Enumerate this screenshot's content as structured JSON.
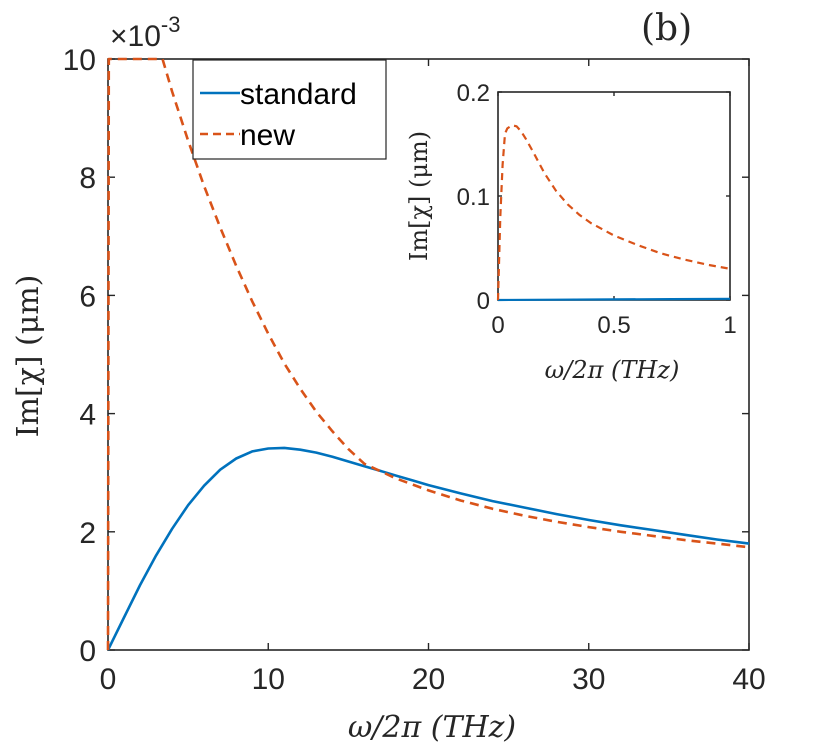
{
  "panel_label": "(b)",
  "colors": {
    "standard": "#0072BD",
    "new": "#D95319",
    "axis": "#262626"
  },
  "chart_data": [
    {
      "id": "main",
      "type": "line",
      "xlabel": "ω/2π (THz)",
      "ylabel": "Im[χ] (μm)",
      "xlim": [
        0,
        40
      ],
      "ylim": [
        0,
        10
      ],
      "y_multiplier": "×10",
      "y_multiplier_exp": "-3",
      "xticks": [
        0,
        10,
        20,
        30,
        40
      ],
      "yticks": [
        0,
        2,
        4,
        6,
        8,
        10
      ],
      "legend": {
        "position": "top-left",
        "entries": [
          "standard",
          "new"
        ]
      },
      "series": [
        {
          "name": "standard",
          "style": "solid",
          "x": [
            0,
            1,
            2,
            3,
            4,
            5,
            6,
            7,
            8,
            9,
            10,
            11,
            12,
            13,
            14,
            15,
            16,
            17,
            18,
            19,
            20,
            22,
            24,
            26,
            28,
            30,
            32,
            34,
            36,
            38,
            40
          ],
          "y": [
            0,
            0.55,
            1.1,
            1.6,
            2.05,
            2.45,
            2.78,
            3.05,
            3.24,
            3.36,
            3.41,
            3.42,
            3.39,
            3.34,
            3.27,
            3.19,
            3.11,
            3.03,
            2.95,
            2.87,
            2.79,
            2.65,
            2.52,
            2.41,
            2.3,
            2.2,
            2.11,
            2.03,
            1.95,
            1.87,
            1.8
          ]
        },
        {
          "name": "new",
          "style": "dashed",
          "x": [
            0,
            0.05,
            0.1,
            3.4,
            4,
            5,
            6,
            7,
            8,
            9,
            10,
            11,
            12,
            13,
            14,
            15,
            16,
            18,
            20,
            22,
            24,
            26,
            28,
            30,
            32,
            34,
            36,
            38,
            40
          ],
          "y": [
            0,
            10,
            10,
            10,
            9.45,
            8.62,
            7.85,
            7.15,
            6.5,
            5.9,
            5.35,
            4.85,
            4.42,
            4.03,
            3.7,
            3.4,
            3.15,
            2.9,
            2.7,
            2.53,
            2.39,
            2.27,
            2.17,
            2.08,
            2.0,
            1.93,
            1.86,
            1.8,
            1.74
          ]
        }
      ]
    },
    {
      "id": "inset",
      "type": "line",
      "xlabel": "ω/2π (THz)",
      "ylabel": "Im[χ] (μm)",
      "xlim": [
        0,
        1
      ],
      "ylim": [
        0,
        0.2
      ],
      "xticks": [
        0,
        0.5,
        1
      ],
      "xtick_labels": [
        "0",
        "0.5",
        "1"
      ],
      "yticks": [
        0,
        0.1,
        0.2
      ],
      "ytick_labels": [
        "0",
        "0.1",
        "0.2"
      ],
      "series": [
        {
          "name": "standard",
          "style": "solid",
          "x": [
            0,
            0.25,
            0.5,
            0.75,
            1
          ],
          "y": [
            0,
            0.0003,
            0.0006,
            0.0009,
            0.0012
          ]
        },
        {
          "name": "new",
          "style": "dashed",
          "x": [
            0,
            0.01,
            0.02,
            0.03,
            0.04,
            0.06,
            0.08,
            0.1,
            0.12,
            0.15,
            0.2,
            0.25,
            0.3,
            0.35,
            0.4,
            0.5,
            0.6,
            0.7,
            0.8,
            0.9,
            1.0
          ],
          "y": [
            0,
            0.08,
            0.13,
            0.16,
            0.165,
            0.168,
            0.167,
            0.162,
            0.155,
            0.143,
            0.122,
            0.105,
            0.092,
            0.082,
            0.074,
            0.062,
            0.053,
            0.045,
            0.039,
            0.034,
            0.03
          ]
        }
      ]
    }
  ]
}
